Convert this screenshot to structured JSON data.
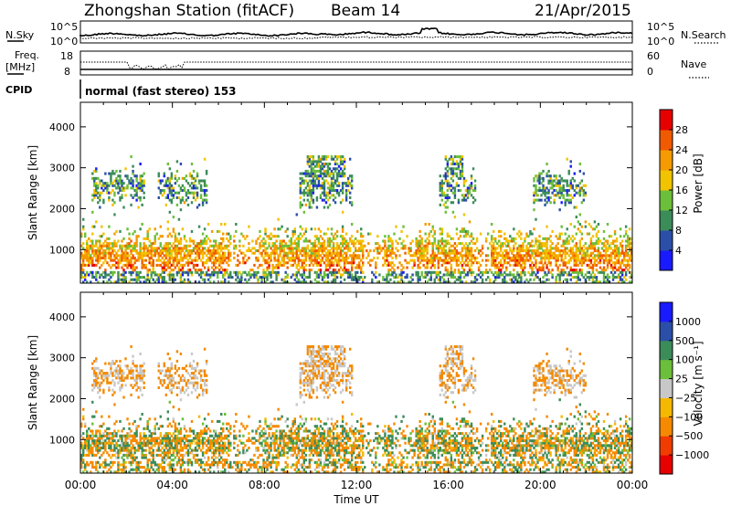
{
  "header": {
    "station": "Zhongshan Station (fitACF)",
    "beam": "Beam 14",
    "date": "21/Apr/2015"
  },
  "top_panels": {
    "nsky": {
      "label": "N.Sky",
      "ticks": [
        "10^5",
        "10^0"
      ],
      "right_label": "N.Search",
      "right_ticks": [
        "10^5",
        "10^0"
      ]
    },
    "freq": {
      "label_line1": "Freq.",
      "label_line2": "[MHz]",
      "ticks": [
        "18",
        "8"
      ],
      "right_label": "Nave",
      "right_ticks": [
        "60",
        "0"
      ]
    },
    "cpid": {
      "label": "CPID",
      "value": "normal (fast stereo) 153"
    }
  },
  "colors": {
    "power": [
      "#1a1aff",
      "#2b4fa8",
      "#3c8c5a",
      "#6cbf3a",
      "#f2c300",
      "#f59a00",
      "#f05a00",
      "#e60000"
    ],
    "velocity": [
      "#e60000",
      "#f03c00",
      "#f58a00",
      "#f5b800",
      "#c8c8c8",
      "#6cbf3a",
      "#3c8c5a",
      "#2b4fa8",
      "#1a1aff"
    ]
  },
  "chart_data": [
    {
      "type": "heatmap",
      "title": "Power",
      "ylabel": "Slant Range [km]",
      "xlabel": "",
      "x_ticks": [
        "00:00",
        "04:00",
        "08:00",
        "12:00",
        "16:00",
        "20:00",
        "00:00"
      ],
      "y_ticks": [
        "1000",
        "2000",
        "3000",
        "4000"
      ],
      "ylim": [
        180,
        4600
      ],
      "colorbar_label": "Power [dB]",
      "colorbar_ticks": [
        "4",
        "8",
        "12",
        "16",
        "20",
        "24",
        "28"
      ],
      "colorbar_range": [
        0,
        32
      ]
    },
    {
      "type": "heatmap",
      "title": "Velocity",
      "ylabel": "Slant Range [km]",
      "xlabel": "Time UT",
      "x_ticks": [
        "00:00",
        "04:00",
        "08:00",
        "12:00",
        "16:00",
        "20:00",
        "00:00"
      ],
      "y_ticks": [
        "1000",
        "2000",
        "3000",
        "4000"
      ],
      "ylim": [
        180,
        4600
      ],
      "colorbar_label": "Velocity [m s⁻¹]",
      "colorbar_ticks": [
        "1000",
        "500",
        "100",
        "25",
        "−25",
        "−100",
        "−500",
        "−1000"
      ]
    }
  ]
}
